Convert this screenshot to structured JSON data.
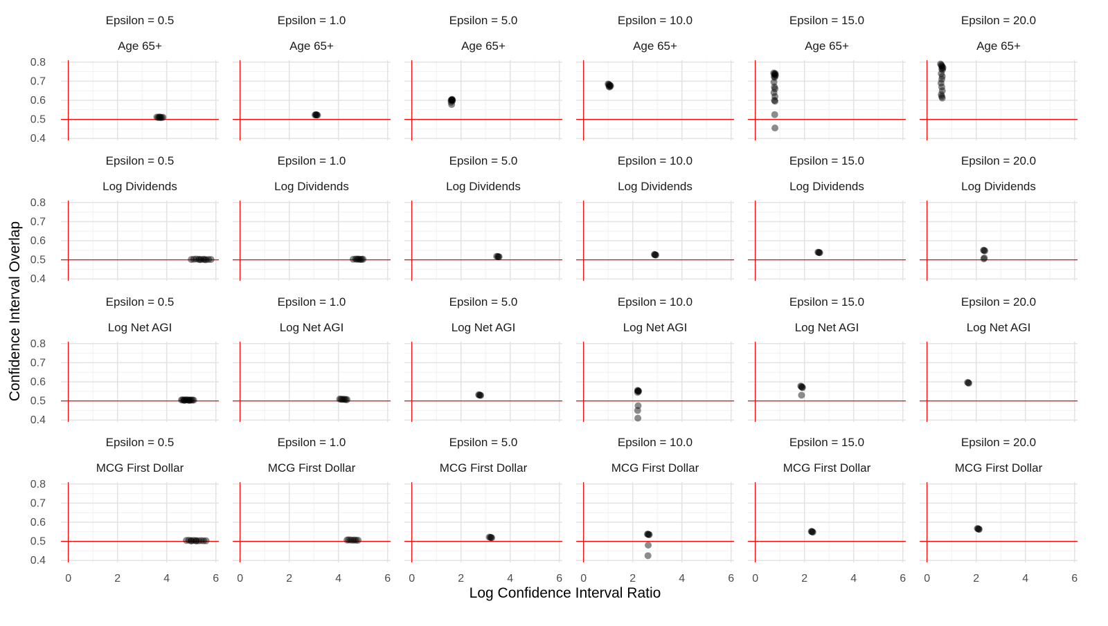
{
  "chart_data": {
    "type": "scatter",
    "xlabel": "Log Confidence Interval Ratio",
    "ylabel": "Confidence Interval Overlap",
    "xlim": [
      0,
      6
    ],
    "ylim": [
      0.4,
      0.8
    ],
    "x_ticks": [
      "0",
      "2",
      "4",
      "6"
    ],
    "y_ticks": [
      "0.4",
      "0.5",
      "0.6",
      "0.7",
      "0.8"
    ],
    "reference_lines": {
      "x": 0,
      "y": 0.5,
      "color": "#ff0000"
    },
    "grid": true,
    "facet_cols": [
      "Epsilon = 0.5",
      "Epsilon = 1.0",
      "Epsilon = 5.0",
      "Epsilon = 10.0",
      "Epsilon = 15.0",
      "Epsilon = 20.0"
    ],
    "facet_rows": [
      "Age 65+",
      "Log Dividends",
      "Log Net AGI",
      "MCG First Dollar"
    ],
    "point_color": "#000000",
    "panels": [
      [
        {
          "x": [
            3.6,
            3.65,
            3.7,
            3.75,
            3.8,
            3.85,
            3.72
          ],
          "y": [
            0.512,
            0.51,
            0.511,
            0.509,
            0.51,
            0.511,
            0.513
          ]
        },
        {
          "x": [
            3.05,
            3.08,
            3.1,
            3.12,
            3.15
          ],
          "y": [
            0.523,
            0.525,
            0.524,
            0.523,
            0.522
          ]
        },
        {
          "x": [
            1.6,
            1.62,
            1.64,
            1.65,
            1.63,
            1.6,
            1.62,
            1.65
          ],
          "y": [
            0.6,
            0.602,
            0.605,
            0.598,
            0.603,
            0.59,
            0.578,
            0.6
          ]
        },
        {
          "x": [
            1.0,
            1.03,
            1.05,
            1.08,
            1.1,
            1.04,
            1.06
          ],
          "y": [
            0.685,
            0.683,
            0.68,
            0.678,
            0.675,
            0.672,
            0.67
          ]
        },
        {
          "x": [
            0.75,
            0.78,
            0.8,
            0.82,
            0.77,
            0.79,
            0.81,
            0.76,
            0.78,
            0.8,
            0.76,
            0.8,
            0.78,
            0.8,
            0.79,
            0.8
          ],
          "y": [
            0.743,
            0.738,
            0.735,
            0.73,
            0.725,
            0.72,
            0.74,
            0.695,
            0.67,
            0.66,
            0.64,
            0.62,
            0.6,
            0.595,
            0.525,
            0.455
          ]
        },
        {
          "x": [
            0.55,
            0.58,
            0.6,
            0.62,
            0.65,
            0.6,
            0.63,
            0.58,
            0.62,
            0.6,
            0.57,
            0.6,
            0.62,
            0.58,
            0.6,
            0.62
          ],
          "y": [
            0.79,
            0.785,
            0.78,
            0.775,
            0.77,
            0.765,
            0.76,
            0.74,
            0.725,
            0.71,
            0.69,
            0.67,
            0.65,
            0.63,
            0.62,
            0.612
          ]
        }
      ],
      [
        {
          "x": [
            5.0,
            5.1,
            5.2,
            5.3,
            5.4,
            5.5,
            5.6,
            5.7,
            5.8,
            5.35,
            5.55
          ],
          "y": [
            0.502,
            0.503,
            0.504,
            0.503,
            0.502,
            0.503,
            0.501,
            0.502,
            0.502,
            0.501,
            0.501
          ]
        },
        {
          "x": [
            4.6,
            4.7,
            4.75,
            4.8,
            4.85,
            4.9,
            4.95,
            5.0
          ],
          "y": [
            0.503,
            0.504,
            0.503,
            0.504,
            0.503,
            0.502,
            0.503,
            0.503
          ]
        },
        {
          "x": [
            3.45,
            3.5,
            3.52,
            3.55
          ],
          "y": [
            0.518,
            0.517,
            0.516,
            0.516
          ]
        },
        {
          "x": [
            2.88,
            2.9,
            2.92,
            2.94
          ],
          "y": [
            0.528,
            0.527,
            0.526,
            0.525
          ]
        },
        {
          "x": [
            2.55,
            2.58,
            2.6,
            2.62
          ],
          "y": [
            0.54,
            0.539,
            0.538,
            0.537
          ]
        },
        {
          "x": [
            2.3,
            2.32,
            2.35,
            2.33,
            2.31
          ],
          "y": [
            0.55,
            0.549,
            0.547,
            0.51,
            0.505
          ]
        }
      ],
      [
        {
          "x": [
            4.6,
            4.65,
            4.7,
            4.75,
            4.8,
            4.85,
            4.9,
            4.95,
            5.0,
            5.05,
            5.1,
            4.72,
            4.92
          ],
          "y": [
            0.505,
            0.506,
            0.504,
            0.505,
            0.506,
            0.505,
            0.504,
            0.505,
            0.504,
            0.505,
            0.504,
            0.503,
            0.503
          ]
        },
        {
          "x": [
            4.05,
            4.1,
            4.15,
            4.2,
            4.25,
            4.3,
            4.35
          ],
          "y": [
            0.51,
            0.509,
            0.508,
            0.509,
            0.508,
            0.507,
            0.507
          ]
        },
        {
          "x": [
            2.72,
            2.75,
            2.78,
            2.8
          ],
          "y": [
            0.532,
            0.531,
            0.53,
            0.529
          ]
        },
        {
          "x": [
            2.2,
            2.22,
            2.24,
            2.2,
            2.22,
            2.2,
            2.21,
            2.22
          ],
          "y": [
            0.555,
            0.553,
            0.55,
            0.545,
            0.475,
            0.45,
            0.41,
            0.552
          ]
        },
        {
          "x": [
            1.85,
            1.88,
            1.9,
            1.92,
            1.88
          ],
          "y": [
            0.578,
            0.575,
            0.572,
            0.57,
            0.53
          ]
        },
        {
          "x": [
            1.65,
            1.68,
            1.7
          ],
          "y": [
            0.597,
            0.595,
            0.593
          ]
        }
      ],
      [
        {
          "x": [
            4.8,
            4.9,
            5.0,
            5.1,
            5.2,
            5.3,
            5.4,
            5.5,
            5.6,
            5.0,
            5.2
          ],
          "y": [
            0.505,
            0.506,
            0.504,
            0.505,
            0.504,
            0.503,
            0.504,
            0.503,
            0.503,
            0.502,
            0.502
          ]
        },
        {
          "x": [
            4.35,
            4.42,
            4.5,
            4.58,
            4.65,
            4.72,
            4.8
          ],
          "y": [
            0.507,
            0.508,
            0.507,
            0.506,
            0.507,
            0.506,
            0.506
          ]
        },
        {
          "x": [
            3.15,
            3.2,
            3.22,
            3.25
          ],
          "y": [
            0.522,
            0.521,
            0.52,
            0.519
          ]
        },
        {
          "x": [
            2.6,
            2.62,
            2.65,
            2.67,
            2.63,
            2.62
          ],
          "y": [
            0.538,
            0.537,
            0.536,
            0.535,
            0.48,
            0.425
          ]
        },
        {
          "x": [
            2.28,
            2.3,
            2.32,
            2.34
          ],
          "y": [
            0.552,
            0.551,
            0.55,
            0.548
          ]
        },
        {
          "x": [
            2.05,
            2.08,
            2.1,
            2.12
          ],
          "y": [
            0.567,
            0.566,
            0.564,
            0.563
          ]
        }
      ]
    ]
  }
}
